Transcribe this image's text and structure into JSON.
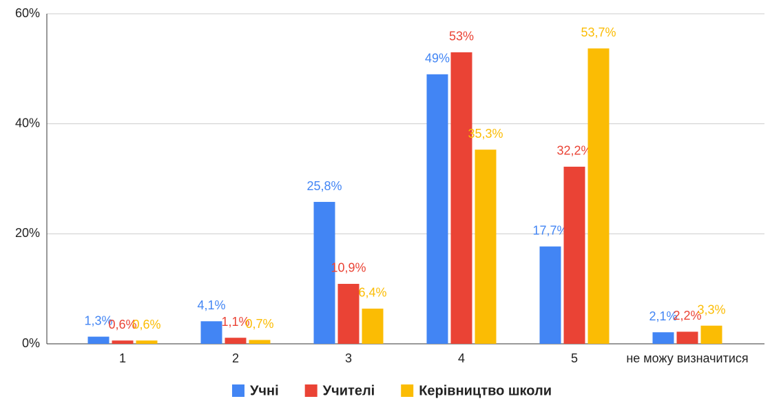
{
  "chart_data": {
    "type": "bar",
    "categories": [
      "1",
      "2",
      "3",
      "4",
      "5",
      "не можу визначитися"
    ],
    "series": [
      {
        "name": "Учні",
        "color": "#4285f4",
        "values": [
          1.3,
          4.1,
          25.8,
          49,
          17.7,
          2.1
        ],
        "value_labels": [
          "1,3%",
          "4,1%",
          "25,8%",
          "49%",
          "17,7%",
          "2,1%"
        ]
      },
      {
        "name": "Учителі",
        "color": "#ea4335",
        "values": [
          0.6,
          1.1,
          10.9,
          53,
          32.2,
          2.2
        ],
        "value_labels": [
          "0,6%",
          "1,1%",
          "10,9%",
          "53%",
          "32,2%",
          "2,2%"
        ]
      },
      {
        "name": "Керівництво школи",
        "color": "#fbbc04",
        "values": [
          0.6,
          0.7,
          6.4,
          35.3,
          53.7,
          3.3
        ],
        "value_labels": [
          "0,6%",
          "0,7%",
          "6,4%",
          "35,3%",
          "53,7%",
          "3,3%"
        ]
      }
    ],
    "ylim": [
      0,
      60
    ],
    "yticks": [
      {
        "value": 0,
        "label": "0%"
      },
      {
        "value": 20,
        "label": "20%"
      },
      {
        "value": 40,
        "label": "40%"
      },
      {
        "value": 60,
        "label": "60%"
      }
    ],
    "grid": true,
    "legend": "bottom"
  }
}
